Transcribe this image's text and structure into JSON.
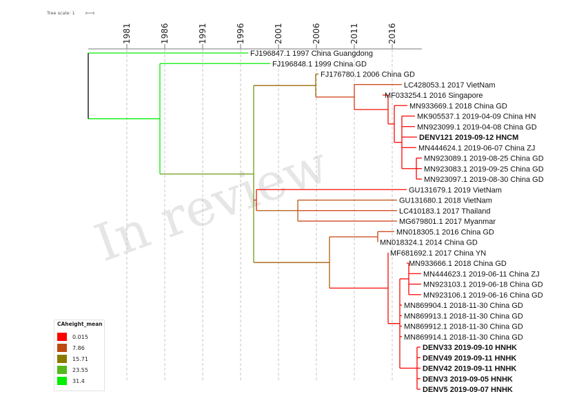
{
  "tree_scale": "Tree scale: 1",
  "watermark": "In review",
  "axis": {
    "years": [
      1981,
      1986,
      1991,
      1996,
      2001,
      2006,
      2011,
      2016
    ]
  },
  "legend": {
    "title": "CAheight_mean",
    "items": [
      {
        "label": "0.015",
        "color": "#ff0000"
      },
      {
        "label": "7.86",
        "color": "#bf4a11"
      },
      {
        "label": "15.71",
        "color": "#8a7a00"
      },
      {
        "label": "23.55",
        "color": "#55b81c"
      },
      {
        "label": "31.4",
        "color": "#00ee00"
      }
    ]
  },
  "taxa": [
    {
      "label": "FJ196847.1 1997 China Guangdong",
      "bold": false
    },
    {
      "label": "FJ196848.1 1999 China GD",
      "bold": false
    },
    {
      "label": "FJ176780.1 2006 China GD",
      "bold": false
    },
    {
      "label": "LC428053.1 2017 VietNam",
      "bold": false
    },
    {
      "label": "MF033254.1 2016 Singapore",
      "bold": false
    },
    {
      "label": "MN933669.1 2018 China GD",
      "bold": false
    },
    {
      "label": "MK905537.1 2019-04-09 China HN",
      "bold": false
    },
    {
      "label": "MN923099.1 2019-04-08 China GD",
      "bold": false
    },
    {
      "label": "DENV121 2019-09-12 HNCM",
      "bold": true
    },
    {
      "label": "MN444624.1 2019-06-07 China ZJ",
      "bold": false
    },
    {
      "label": "MN923089.1 2019-08-25 China GD",
      "bold": false
    },
    {
      "label": "MN923083.1 2019-09-25 China GD",
      "bold": false
    },
    {
      "label": "MN923097.1 2019-08-30 China GD",
      "bold": false
    },
    {
      "label": "GU131679.1 2019 VietNam",
      "bold": false
    },
    {
      "label": "GU131680.1 2018 VietNam",
      "bold": false
    },
    {
      "label": "LC410183.1 2017 Thailand",
      "bold": false
    },
    {
      "label": "MG679801.1 2017 Myanmar",
      "bold": false
    },
    {
      "label": "MN018305.1 2016 China GD",
      "bold": false
    },
    {
      "label": "MN018324.1 2014 China GD",
      "bold": false
    },
    {
      "label": "MF681692.1 2017 China YN",
      "bold": false
    },
    {
      "label": "MN933666.1 2018 China GD",
      "bold": false
    },
    {
      "label": "MN444623.1 2019-06-11 China ZJ",
      "bold": false
    },
    {
      "label": "MN923103.1 2019-06-18 China GD",
      "bold": false
    },
    {
      "label": "MN923106.1 2019-06-16 China GD",
      "bold": false
    },
    {
      "label": "MN869904.1 2018-11-30 China GD",
      "bold": false
    },
    {
      "label": "MN869913.1 2018-11-30 China GD",
      "bold": false
    },
    {
      "label": "MN869912.1 2018-11-30 China GD",
      "bold": false
    },
    {
      "label": "MN869914.1 2018-11-30 China GD",
      "bold": false
    },
    {
      "label": "DENV33 2019-09-10 HNHK",
      "bold": true
    },
    {
      "label": "DENV49 2019-09-11 HNHK",
      "bold": true
    },
    {
      "label": "DENV42 2019-09-11 HNHK",
      "bold": true
    },
    {
      "label": "DENV3 2019-09-05 HNHK",
      "bold": true
    },
    {
      "label": "DENV5 2019-09-07 HNHK",
      "bold": true
    }
  ]
}
